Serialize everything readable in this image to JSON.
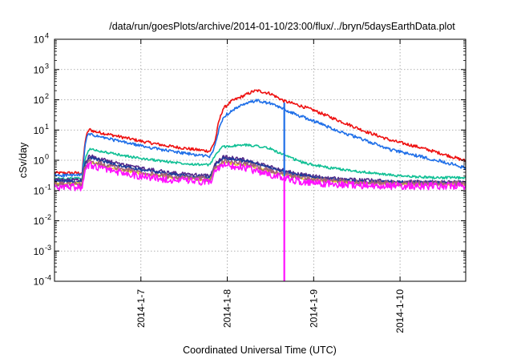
{
  "chart_data": {
    "type": "line",
    "title": "/data/run/goesPlots/archive/2014-01-10/23:00/flux/../bryn/5daysEarthData.plot",
    "xlabel": "Coordinated Universal Time (UTC)",
    "ylabel": "cSv/day",
    "y_scale": "log",
    "ylim": [
      0.0001,
      10000
    ],
    "xlim": [
      0,
      4.76
    ],
    "x_unit": "days since 2014-01-06 00:00 UTC",
    "x_ticks": [
      {
        "x": 1,
        "label": "2014-1-7"
      },
      {
        "x": 2,
        "label": "2014-1-8"
      },
      {
        "x": 3,
        "label": "2014-1-9"
      },
      {
        "x": 4,
        "label": "2014-1-10"
      }
    ],
    "y_ticks": [
      {
        "exp": -4,
        "label_base": "10",
        "label_exp": "-4"
      },
      {
        "exp": -3,
        "label_base": "10",
        "label_exp": "-3"
      },
      {
        "exp": -2,
        "label_base": "10",
        "label_exp": "-2"
      },
      {
        "exp": -1,
        "label_base": "10",
        "label_exp": "-1"
      },
      {
        "exp": 0,
        "label_base": "10",
        "label_exp": "0"
      },
      {
        "exp": 1,
        "label_base": "10",
        "label_exp": "1"
      },
      {
        "exp": 2,
        "label_base": "10",
        "label_exp": "2"
      },
      {
        "exp": 3,
        "label_base": "10",
        "label_exp": "3"
      },
      {
        "exp": 4,
        "label_base": "10",
        "label_exp": "4"
      }
    ],
    "grid": true,
    "legend": "none",
    "series": [
      {
        "color": "#ee1111",
        "noise": 0.05,
        "points": [
          [
            0,
            0.38
          ],
          [
            0.32,
            0.38
          ],
          [
            0.34,
            1.6
          ],
          [
            0.36,
            5.5
          ],
          [
            0.4,
            10.5
          ],
          [
            0.46,
            9.0
          ],
          [
            0.7,
            6.5
          ],
          [
            1.0,
            4.3
          ],
          [
            1.3,
            3.0
          ],
          [
            1.6,
            2.3
          ],
          [
            1.8,
            2.0
          ],
          [
            1.86,
            4.5
          ],
          [
            1.9,
            18
          ],
          [
            1.95,
            50
          ],
          [
            2.05,
            90
          ],
          [
            2.2,
            140
          ],
          [
            2.3,
            190
          ],
          [
            2.35,
            200
          ],
          [
            2.5,
            160
          ],
          [
            2.66,
            90
          ],
          [
            2.8,
            70
          ],
          [
            3.0,
            45
          ],
          [
            3.3,
            20
          ],
          [
            3.6,
            9
          ],
          [
            3.9,
            4.5
          ],
          [
            4.2,
            2.8
          ],
          [
            4.5,
            1.6
          ],
          [
            4.76,
            0.95
          ]
        ]
      },
      {
        "color": "#1f6fe8",
        "noise": 0.05,
        "points": [
          [
            0,
            0.32
          ],
          [
            0.32,
            0.32
          ],
          [
            0.34,
            1.2
          ],
          [
            0.36,
            4.5
          ],
          [
            0.4,
            7.5
          ],
          [
            0.46,
            6.5
          ],
          [
            0.7,
            4.6
          ],
          [
            1.0,
            3.0
          ],
          [
            1.3,
            2.1
          ],
          [
            1.6,
            1.55
          ],
          [
            1.8,
            1.35
          ],
          [
            1.86,
            3.0
          ],
          [
            1.9,
            10
          ],
          [
            1.95,
            25
          ],
          [
            2.05,
            45
          ],
          [
            2.2,
            70
          ],
          [
            2.3,
            90
          ],
          [
            2.35,
            92
          ],
          [
            2.5,
            75
          ],
          [
            2.66,
            48
          ],
          [
            2.8,
            32
          ],
          [
            3.0,
            20
          ],
          [
            3.3,
            9
          ],
          [
            3.6,
            4.5
          ],
          [
            3.9,
            2.2
          ],
          [
            4.2,
            1.4
          ],
          [
            4.5,
            0.9
          ],
          [
            4.76,
            0.55
          ]
        ]
      },
      {
        "color": "#11c095",
        "noise": 0.04,
        "points": [
          [
            0,
            0.25
          ],
          [
            0.32,
            0.25
          ],
          [
            0.35,
            1.0
          ],
          [
            0.4,
            2.3
          ],
          [
            0.46,
            2.2
          ],
          [
            0.7,
            1.6
          ],
          [
            1.0,
            1.15
          ],
          [
            1.3,
            0.9
          ],
          [
            1.6,
            0.75
          ],
          [
            1.8,
            0.7
          ],
          [
            1.86,
            1.5
          ],
          [
            1.95,
            2.8
          ],
          [
            2.2,
            3.2
          ],
          [
            2.35,
            3.0
          ],
          [
            2.5,
            2.4
          ],
          [
            2.7,
            1.3
          ],
          [
            2.9,
            0.8
          ],
          [
            3.2,
            0.55
          ],
          [
            3.6,
            0.4
          ],
          [
            4.0,
            0.3
          ],
          [
            4.4,
            0.27
          ],
          [
            4.76,
            0.26
          ]
        ]
      },
      {
        "color": "#552a8a",
        "noise": 0.06,
        "points": [
          [
            0,
            0.22
          ],
          [
            0.32,
            0.22
          ],
          [
            0.35,
            0.8
          ],
          [
            0.4,
            1.35
          ],
          [
            0.46,
            1.3
          ],
          [
            0.7,
            0.8
          ],
          [
            1.0,
            0.55
          ],
          [
            1.3,
            0.4
          ],
          [
            1.6,
            0.33
          ],
          [
            1.8,
            0.3
          ],
          [
            1.86,
            0.8
          ],
          [
            1.95,
            1.3
          ],
          [
            2.2,
            1.05
          ],
          [
            2.5,
            0.6
          ],
          [
            2.8,
            0.36
          ],
          [
            3.1,
            0.27
          ],
          [
            3.5,
            0.22
          ],
          [
            4.0,
            0.2
          ],
          [
            4.4,
            0.19
          ],
          [
            4.76,
            0.19
          ]
        ]
      },
      {
        "color": "#1c3c9c",
        "noise": 0.05,
        "points": [
          [
            0,
            0.2
          ],
          [
            0.32,
            0.2
          ],
          [
            0.35,
            0.7
          ],
          [
            0.4,
            1.2
          ],
          [
            0.46,
            1.15
          ],
          [
            0.7,
            0.7
          ],
          [
            1.0,
            0.48
          ],
          [
            1.3,
            0.36
          ],
          [
            1.6,
            0.3
          ],
          [
            1.8,
            0.28
          ],
          [
            1.86,
            0.7
          ],
          [
            1.95,
            1.15
          ],
          [
            2.2,
            0.95
          ],
          [
            2.5,
            0.55
          ],
          [
            2.8,
            0.33
          ],
          [
            3.1,
            0.25
          ],
          [
            3.5,
            0.2
          ],
          [
            4.0,
            0.19
          ],
          [
            4.4,
            0.18
          ],
          [
            4.76,
            0.18
          ]
        ]
      },
      {
        "color": "#e8d81a",
        "noise": 0.04,
        "points": [
          [
            0,
            0.17
          ],
          [
            0.32,
            0.17
          ],
          [
            0.35,
            0.5
          ],
          [
            0.4,
            0.85
          ],
          [
            0.46,
            0.82
          ],
          [
            0.7,
            0.52
          ],
          [
            1.0,
            0.36
          ],
          [
            1.3,
            0.28
          ],
          [
            1.6,
            0.24
          ],
          [
            1.8,
            0.22
          ],
          [
            1.86,
            0.55
          ],
          [
            1.95,
            0.85
          ],
          [
            2.2,
            0.7
          ],
          [
            2.5,
            0.42
          ],
          [
            2.8,
            0.27
          ],
          [
            3.1,
            0.21
          ],
          [
            3.5,
            0.18
          ],
          [
            4.0,
            0.16
          ],
          [
            4.4,
            0.16
          ],
          [
            4.76,
            0.16
          ]
        ]
      },
      {
        "color": "#a2627a",
        "noise": 0.08,
        "points": [
          [
            0,
            0.16
          ],
          [
            0.32,
            0.16
          ],
          [
            0.35,
            0.55
          ],
          [
            0.4,
            0.95
          ],
          [
            0.46,
            0.9
          ],
          [
            0.7,
            0.58
          ],
          [
            1.0,
            0.4
          ],
          [
            1.3,
            0.3
          ],
          [
            1.6,
            0.25
          ],
          [
            1.8,
            0.24
          ],
          [
            1.86,
            0.6
          ],
          [
            1.95,
            0.95
          ],
          [
            2.2,
            0.78
          ],
          [
            2.5,
            0.45
          ],
          [
            2.8,
            0.28
          ],
          [
            3.1,
            0.22
          ],
          [
            3.5,
            0.19
          ],
          [
            4.0,
            0.17
          ],
          [
            4.4,
            0.17
          ],
          [
            4.76,
            0.17
          ]
        ]
      },
      {
        "color": "#ff11ff",
        "noise": 0.12,
        "points": [
          [
            0,
            0.13
          ],
          [
            0.32,
            0.13
          ],
          [
            0.35,
            0.4
          ],
          [
            0.4,
            0.7
          ],
          [
            0.46,
            0.65
          ],
          [
            0.7,
            0.42
          ],
          [
            1.0,
            0.3
          ],
          [
            1.3,
            0.23
          ],
          [
            1.6,
            0.2
          ],
          [
            1.8,
            0.18
          ],
          [
            1.86,
            0.45
          ],
          [
            1.95,
            0.7
          ],
          [
            2.2,
            0.56
          ],
          [
            2.5,
            0.33
          ],
          [
            2.8,
            0.21
          ],
          [
            3.1,
            0.17
          ],
          [
            3.5,
            0.15
          ],
          [
            4.0,
            0.14
          ],
          [
            4.4,
            0.14
          ],
          [
            4.76,
            0.14
          ]
        ]
      }
    ],
    "drops": [
      {
        "color": "#ff11ff",
        "x": 2.66,
        "y_top": 0.3,
        "y_bottom": 0.0001
      },
      {
        "color": "#1f6fe8",
        "x": 2.66,
        "y_top": 80,
        "y_bottom": 0.3
      }
    ]
  }
}
